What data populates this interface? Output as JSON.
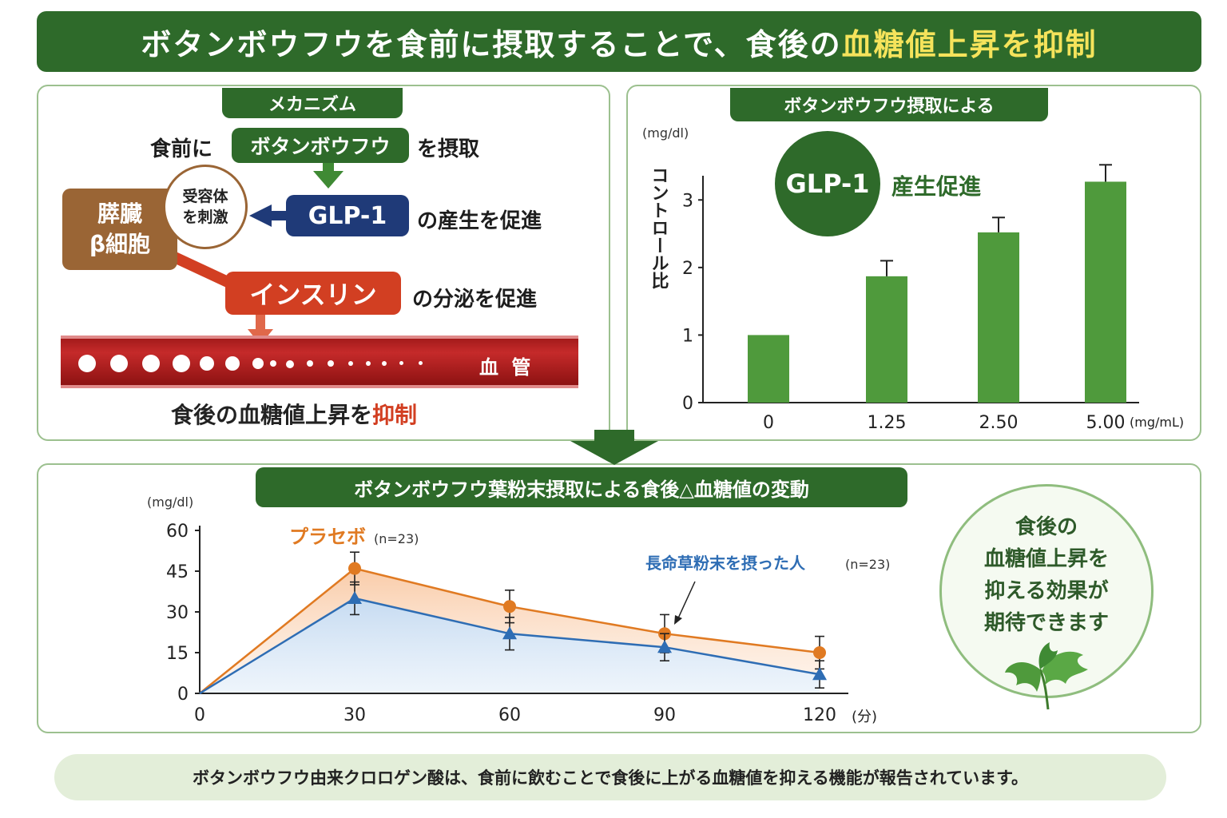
{
  "header": {
    "title_main": "ボタンボウフウを食前に摂取することで、食後の",
    "title_highlight": "血糖値上昇を抑制"
  },
  "mechanism": {
    "tab": "メカニズム",
    "step1_prefix": "食前に",
    "step1_pill": "ボタンボウフウ",
    "step1_suffix": "を摂取",
    "receptor": "受容体\nを刺激",
    "pancreas_line1": "膵臓",
    "pancreas_line2": "β細胞",
    "glp1_pill": "GLP-1",
    "glp1_suffix": "の産生を促進",
    "insulin_pill": "インスリン",
    "insulin_suffix": "の分泌を促進",
    "vessel_label": "血 管",
    "conclusion_prefix": "食後の血糖値上昇を",
    "conclusion_highlight": "抑制",
    "colors": {
      "green": "#2e6a2a",
      "navy": "#1f3a78",
      "red": "#d23f22",
      "brown": "#9a6535"
    }
  },
  "glp_panel": {
    "tab": "ボタンボウフウ摂取による",
    "circle_label": "GLP-1",
    "circle_suffix": "産生促進"
  },
  "results": {
    "tab": "ボタンボウフウ葉粉末摂取による食後△血糖値の変動",
    "circle_text": [
      "食後の",
      "血糖値上昇を",
      "抑える効果が",
      "期待できます"
    ]
  },
  "footer": {
    "text": "ボタンボウフウ由来クロロゲン酸は、食前に飲むことで食後に上がる血糖値を抑える機能が報告されています。"
  },
  "chart_data": [
    {
      "type": "bar",
      "title": "",
      "unit": "(mg/dl)",
      "ylabel": "コントロール比",
      "xunit": "(mg/mL)",
      "categories": [
        "0",
        "1.25",
        "2.50",
        "5.00"
      ],
      "values": [
        1.0,
        1.87,
        2.52,
        3.27
      ],
      "errors": [
        0,
        0.23,
        0.22,
        0.25
      ],
      "ylim": [
        0,
        3.5
      ],
      "yticks": [
        0,
        1,
        2,
        3
      ],
      "color": "#4f9a3c"
    },
    {
      "type": "line",
      "unit": "(mg/dl)",
      "xunit": "(分)",
      "x": [
        0,
        30,
        60,
        90,
        120
      ],
      "yticks": [
        0,
        15,
        30,
        45,
        60
      ],
      "ylim": [
        0,
        60
      ],
      "series": [
        {
          "name": "プラセボ",
          "n": "(n=23)",
          "values": [
            0,
            46,
            32,
            22,
            15
          ],
          "errors": [
            0,
            6,
            6,
            7,
            6
          ],
          "color": "#e07a22",
          "marker": "circle"
        },
        {
          "name": "長命草粉末を摂った人",
          "n": "(n=23)",
          "values": [
            0,
            35,
            22,
            17,
            7
          ],
          "errors": [
            0,
            6,
            6,
            5,
            5
          ],
          "color": "#2e6db4",
          "marker": "triangle"
        }
      ]
    }
  ]
}
